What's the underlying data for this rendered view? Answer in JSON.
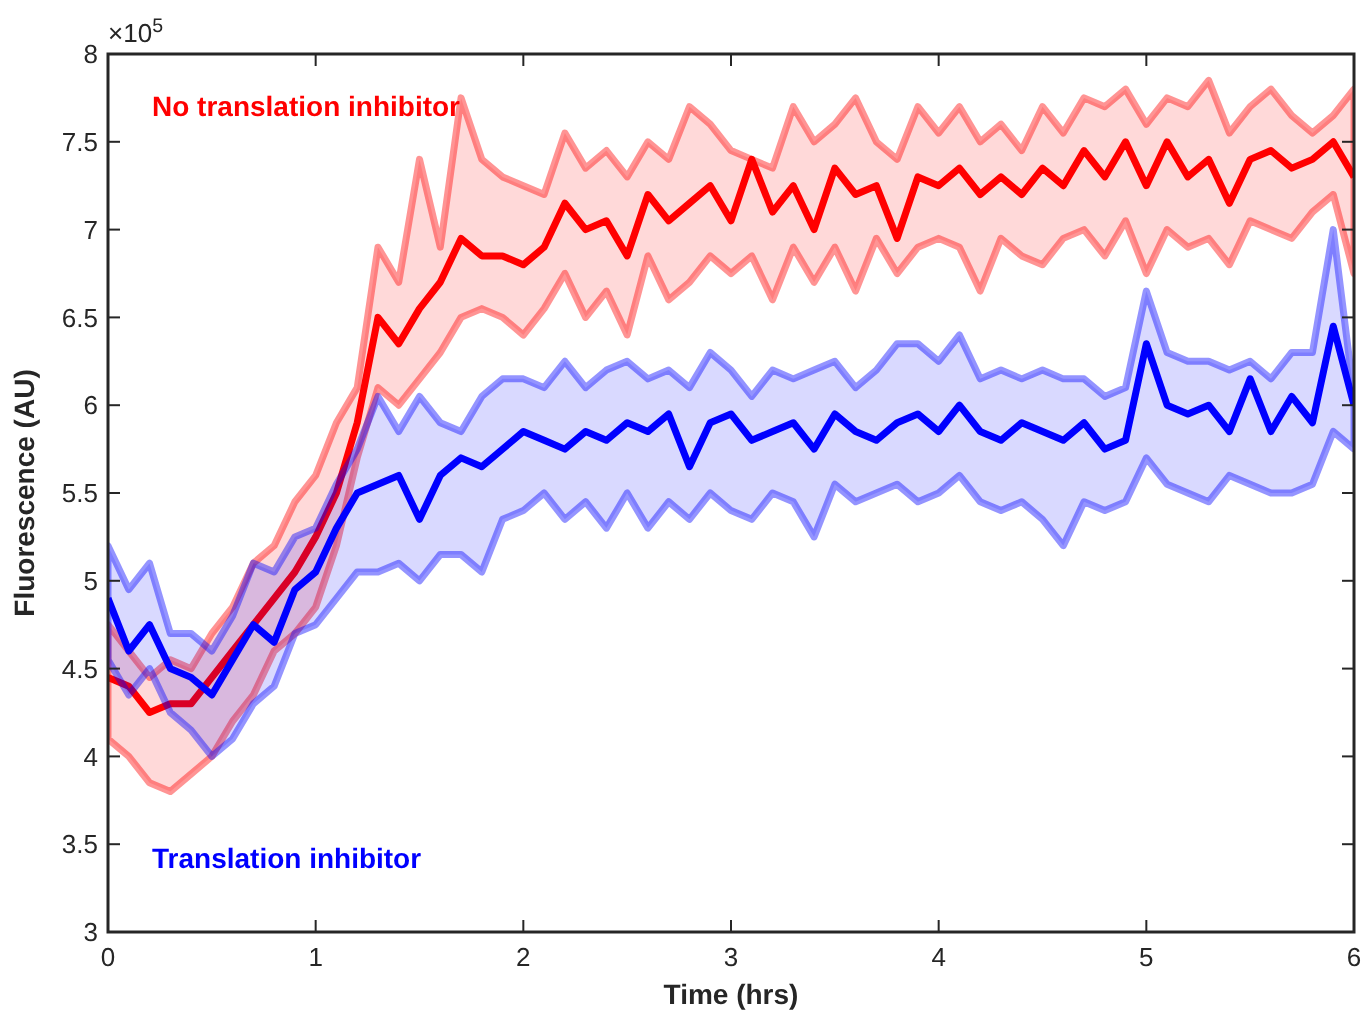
{
  "chart_data": {
    "type": "line",
    "xlabel": "Time (hrs)",
    "ylabel": "Fluorescence (AU)",
    "annotations": [
      "×10$^{5}$"
    ],
    "x": [
      0,
      0.1,
      0.2,
      0.3,
      0.4,
      0.5,
      0.6,
      0.7,
      0.8,
      0.9,
      1,
      1.1,
      1.2,
      1.3,
      1.4,
      1.5,
      1.6,
      1.7,
      1.8,
      1.9,
      2,
      2.1,
      2.2,
      2.3,
      2.4,
      2.5,
      2.6,
      2.7,
      2.8,
      2.9,
      3,
      3.1,
      3.2,
      3.3,
      3.4,
      3.5,
      3.6,
      3.7,
      3.8,
      3.9,
      4,
      4.1,
      4.2,
      4.3,
      4.4,
      4.5,
      4.6,
      4.7,
      4.8,
      4.9,
      5,
      5.1,
      5.2,
      5.3,
      5.4,
      5.5,
      5.6,
      5.7,
      5.8,
      5.9,
      6
    ],
    "xlim": [
      0,
      6
    ],
    "xticks": [
      0,
      1,
      2,
      3,
      4,
      5,
      6
    ],
    "ylim": [
      3,
      8
    ],
    "yticks": [
      3,
      3.5,
      4,
      4.5,
      5,
      5.5,
      6,
      6.5,
      7,
      7.5,
      8
    ],
    "grid": false,
    "legend": false,
    "marker": "none",
    "line_style": "solid",
    "series": [
      {
        "name": "No translation inhibitor",
        "color": "#ff0000",
        "values": [
          4.45,
          4.4,
          4.25,
          4.3,
          4.3,
          4.45,
          4.6,
          4.75,
          4.9,
          5.05,
          5.25,
          5.5,
          5.9,
          6.5,
          6.35,
          6.55,
          6.7,
          6.95,
          6.85,
          6.85,
          6.8,
          6.9,
          7.15,
          7.0,
          7.05,
          6.85,
          7.2,
          7.05,
          7.15,
          7.25,
          7.05,
          7.4,
          7.1,
          7.25,
          7.0,
          7.35,
          7.2,
          7.25,
          6.95,
          7.3,
          7.25,
          7.35,
          7.2,
          7.3,
          7.2,
          7.35,
          7.25,
          7.45,
          7.3,
          7.5,
          7.25,
          7.5,
          7.3,
          7.4,
          7.15,
          7.4,
          7.45,
          7.35,
          7.4,
          7.5,
          7.3
        ],
        "lower": [
          4.1,
          4.0,
          3.85,
          3.8,
          3.9,
          4.0,
          4.2,
          4.35,
          4.6,
          4.7,
          4.85,
          5.2,
          5.7,
          6.1,
          6.0,
          6.15,
          6.3,
          6.5,
          6.55,
          6.5,
          6.4,
          6.55,
          6.75,
          6.5,
          6.65,
          6.4,
          6.85,
          6.6,
          6.7,
          6.85,
          6.75,
          6.85,
          6.6,
          6.9,
          6.7,
          6.9,
          6.65,
          6.95,
          6.75,
          6.9,
          6.95,
          6.9,
          6.65,
          6.95,
          6.85,
          6.8,
          6.95,
          7.0,
          6.85,
          7.05,
          6.75,
          7.0,
          6.9,
          6.95,
          6.8,
          7.05,
          7.0,
          6.95,
          7.1,
          7.2,
          6.75
        ],
        "upper": [
          4.75,
          4.6,
          4.45,
          4.55,
          4.5,
          4.7,
          4.85,
          5.1,
          5.2,
          5.45,
          5.6,
          5.9,
          6.1,
          6.9,
          6.7,
          7.4,
          6.9,
          7.75,
          7.4,
          7.3,
          7.25,
          7.2,
          7.55,
          7.35,
          7.45,
          7.3,
          7.5,
          7.4,
          7.7,
          7.6,
          7.45,
          7.4,
          7.35,
          7.7,
          7.5,
          7.6,
          7.75,
          7.5,
          7.4,
          7.7,
          7.55,
          7.7,
          7.5,
          7.6,
          7.45,
          7.7,
          7.55,
          7.75,
          7.7,
          7.8,
          7.6,
          7.75,
          7.7,
          7.85,
          7.55,
          7.7,
          7.8,
          7.65,
          7.55,
          7.65,
          7.8
        ]
      },
      {
        "name": "Translation inhibitor",
        "color": "#0000ff",
        "values": [
          4.9,
          4.6,
          4.75,
          4.5,
          4.45,
          4.35,
          4.55,
          4.75,
          4.65,
          4.95,
          5.05,
          5.3,
          5.5,
          5.55,
          5.6,
          5.35,
          5.6,
          5.7,
          5.65,
          5.75,
          5.85,
          5.8,
          5.75,
          5.85,
          5.8,
          5.9,
          5.85,
          5.95,
          5.65,
          5.9,
          5.95,
          5.8,
          5.85,
          5.9,
          5.75,
          5.95,
          5.85,
          5.8,
          5.9,
          5.95,
          5.85,
          6.0,
          5.85,
          5.8,
          5.9,
          5.85,
          5.8,
          5.9,
          5.75,
          5.8,
          6.35,
          6.0,
          5.95,
          6.0,
          5.85,
          6.15,
          5.85,
          6.05,
          5.9,
          6.45,
          6.0
        ],
        "lower": [
          4.55,
          4.35,
          4.5,
          4.25,
          4.15,
          4.0,
          4.1,
          4.3,
          4.4,
          4.7,
          4.75,
          4.9,
          5.05,
          5.05,
          5.1,
          5.0,
          5.15,
          5.15,
          5.05,
          5.35,
          5.4,
          5.5,
          5.35,
          5.45,
          5.3,
          5.5,
          5.3,
          5.45,
          5.35,
          5.5,
          5.4,
          5.35,
          5.5,
          5.45,
          5.25,
          5.55,
          5.45,
          5.5,
          5.55,
          5.45,
          5.5,
          5.6,
          5.45,
          5.4,
          5.45,
          5.35,
          5.2,
          5.45,
          5.4,
          5.45,
          5.7,
          5.55,
          5.5,
          5.45,
          5.6,
          5.55,
          5.5,
          5.5,
          5.55,
          5.85,
          5.75
        ],
        "upper": [
          5.2,
          4.95,
          5.1,
          4.7,
          4.7,
          4.6,
          4.8,
          5.1,
          5.05,
          5.25,
          5.3,
          5.55,
          5.75,
          6.05,
          5.85,
          6.05,
          5.9,
          5.85,
          6.05,
          6.15,
          6.15,
          6.1,
          6.25,
          6.1,
          6.2,
          6.25,
          6.15,
          6.2,
          6.1,
          6.3,
          6.2,
          6.05,
          6.2,
          6.15,
          6.2,
          6.25,
          6.1,
          6.2,
          6.35,
          6.35,
          6.25,
          6.4,
          6.15,
          6.2,
          6.15,
          6.2,
          6.15,
          6.15,
          6.05,
          6.1,
          6.65,
          6.3,
          6.25,
          6.25,
          6.2,
          6.25,
          6.15,
          6.3,
          6.3,
          7.0,
          6.05
        ]
      }
    ]
  }
}
